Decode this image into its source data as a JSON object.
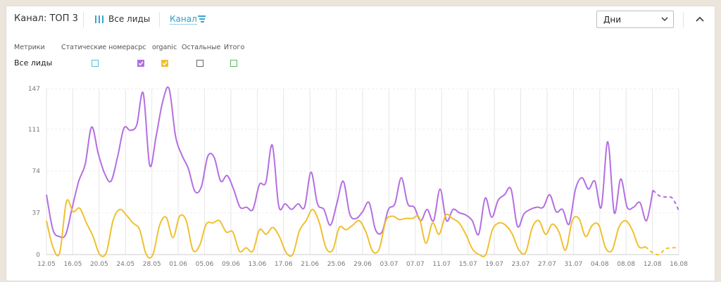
{
  "header": {
    "title": "Канал: ТОП 3",
    "all_leads": "Все лиды",
    "channel": "Канал",
    "period": "Дни"
  },
  "legend": {
    "metrics_label": "Метрики",
    "row_label": "Все лиды",
    "columns": [
      {
        "label": "Статические номера",
        "checked": false,
        "color": "#4fc0d8"
      },
      {
        "label": "cpc",
        "checked": true,
        "color": "#b46ee2"
      },
      {
        "label": "organic",
        "checked": true,
        "color": "#f0c030"
      },
      {
        "label": "Остальные",
        "checked": false,
        "color": "#666666"
      },
      {
        "label": "Итого",
        "checked": false,
        "color": "#5cb85c"
      }
    ]
  },
  "colors": {
    "accent": "#2d9cc6",
    "cpc": "#b46ee2",
    "organic": "#f0c030"
  },
  "chart_data": {
    "type": "line",
    "x_start": "12.05",
    "x_end": "16.08",
    "x_ticks": [
      "12.05",
      "16.05",
      "20.05",
      "24.05",
      "28.05",
      "01.06",
      "05.06",
      "09.06",
      "13.06",
      "17.06",
      "21.06",
      "25.06",
      "29.06",
      "03.07",
      "07.07",
      "11.07",
      "15.07",
      "19.07",
      "23.07",
      "27.07",
      "31.07",
      "04.08",
      "08.08",
      "12.08",
      "16.08"
    ],
    "y_ticks": [
      0,
      37,
      74,
      111,
      147
    ],
    "ylim": [
      0,
      147
    ],
    "grid": true,
    "series": [
      {
        "name": "cpc",
        "color": "#b46ee2",
        "values": [
          53,
          22,
          16,
          18,
          42,
          65,
          80,
          113,
          90,
          72,
          65,
          86,
          112,
          110,
          115,
          143,
          79,
          105,
          135,
          147,
          105,
          88,
          76,
          56,
          60,
          87,
          86,
          65,
          70,
          58,
          42,
          42,
          40,
          62,
          64,
          97,
          43,
          45,
          40,
          45,
          42,
          73,
          45,
          40,
          26,
          45,
          65,
          36,
          32,
          38,
          46,
          22,
          20,
          40,
          45,
          68,
          45,
          42,
          30,
          40,
          30,
          58,
          30,
          40,
          37,
          35,
          30,
          18,
          50,
          33,
          48,
          53,
          58,
          25,
          36,
          40,
          42,
          42,
          53,
          38,
          40,
          27,
          58,
          68,
          58,
          65,
          42,
          100,
          37,
          67,
          42,
          42,
          46,
          30,
          57,
          52,
          51,
          50,
          39
        ],
        "forecast_from": 94
      },
      {
        "name": "organic",
        "color": "#f0c030",
        "values": [
          30,
          6,
          2,
          47,
          38,
          41,
          28,
          16,
          0,
          2,
          30,
          40,
          35,
          28,
          22,
          0,
          0,
          26,
          33,
          15,
          34,
          30,
          4,
          8,
          27,
          28,
          30,
          20,
          20,
          3,
          6,
          3,
          22,
          18,
          24,
          16,
          2,
          0,
          21,
          30,
          40,
          28,
          6,
          4,
          24,
          22,
          26,
          30,
          20,
          3,
          5,
          30,
          34,
          31,
          32,
          32,
          33,
          10,
          28,
          18,
          35,
          32,
          28,
          18,
          5,
          0,
          0,
          22,
          28,
          26,
          18,
          4,
          2,
          24,
          30,
          18,
          27,
          20,
          4,
          30,
          32,
          16,
          26,
          26,
          6,
          4,
          24,
          30,
          22,
          7,
          7,
          2,
          0,
          5,
          6,
          6
        ],
        "forecast_from": 90
      }
    ]
  }
}
